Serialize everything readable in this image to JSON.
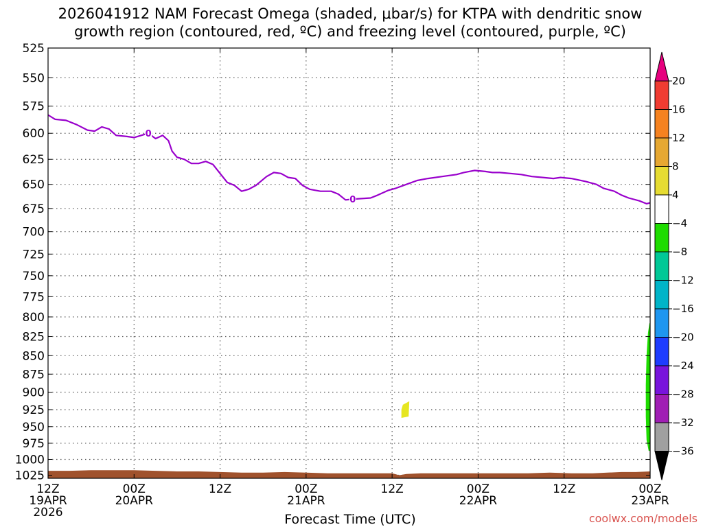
{
  "title": {
    "line1": "2026041912 NAM Forecast Omega (shaded, μbar/s) for KTPA with dendritic snow",
    "line2": "growth region (contoured, red, ºC) and freezing level (contoured, purple, ºC)"
  },
  "credit": "coolwx.com/models",
  "chart_data": {
    "type": "time-height",
    "title": "2026041912 NAM Forecast Omega (shaded, μbar/s) for KTPA with dendritic snow growth region (contoured, red, ºC) and freezing level (contoured, purple, ºC)",
    "xlabel": "Forecast Time (UTC)",
    "ylabel": "",
    "x_unit": "forecast hours from 2026-04-19 12Z",
    "xlim": [
      0,
      84
    ],
    "ylim": [
      1030,
      525
    ],
    "y_ticks": [
      525,
      550,
      575,
      600,
      625,
      650,
      675,
      700,
      725,
      750,
      775,
      800,
      825,
      850,
      875,
      900,
      925,
      950,
      975,
      1000,
      1025
    ],
    "x_ticks": [
      {
        "hour": 0,
        "line1": "12Z",
        "line2": "19APR",
        "line3": "2026"
      },
      {
        "hour": 12,
        "line1": "00Z",
        "line2": "20APR",
        "line3": ""
      },
      {
        "hour": 24,
        "line1": "12Z",
        "line2": "",
        "line3": ""
      },
      {
        "hour": 36,
        "line1": "00Z",
        "line2": "21APR",
        "line3": ""
      },
      {
        "hour": 48,
        "line1": "12Z",
        "line2": "",
        "line3": ""
      },
      {
        "hour": 60,
        "line1": "00Z",
        "line2": "22APR",
        "line3": ""
      },
      {
        "hour": 72,
        "line1": "12Z",
        "line2": "",
        "line3": ""
      },
      {
        "hour": 84,
        "line1": "00Z",
        "line2": "23APR",
        "line3": ""
      }
    ],
    "grid": true,
    "freezing_level": {
      "name": "freezing level",
      "label": "0",
      "color": "#9900cc",
      "label_points": [
        {
          "x": 14,
          "y": 600
        },
        {
          "x": 42.5,
          "y": 665
        }
      ],
      "points": [
        [
          0,
          583
        ],
        [
          1,
          587
        ],
        [
          2.5,
          588
        ],
        [
          4,
          592
        ],
        [
          5.5,
          597
        ],
        [
          6.5,
          598
        ],
        [
          7.5,
          594
        ],
        [
          8.5,
          596
        ],
        [
          9.5,
          602
        ],
        [
          11,
          603
        ],
        [
          12,
          604
        ],
        [
          13,
          602
        ],
        [
          14,
          600
        ],
        [
          15,
          605
        ],
        [
          16,
          602
        ],
        [
          16.8,
          607
        ],
        [
          17.3,
          617
        ],
        [
          18,
          623
        ],
        [
          19,
          625
        ],
        [
          20,
          629
        ],
        [
          21,
          629
        ],
        [
          22,
          627
        ],
        [
          23,
          630
        ],
        [
          24,
          639
        ],
        [
          25,
          648
        ],
        [
          26,
          651
        ],
        [
          27,
          657
        ],
        [
          28,
          655
        ],
        [
          29,
          651
        ],
        [
          30.5,
          642
        ],
        [
          31.5,
          638
        ],
        [
          32.5,
          639
        ],
        [
          33.5,
          643
        ],
        [
          34.5,
          644
        ],
        [
          35.5,
          651
        ],
        [
          36.5,
          655
        ],
        [
          38,
          657
        ],
        [
          39.5,
          657
        ],
        [
          40.5,
          660
        ],
        [
          41.5,
          666
        ],
        [
          43,
          665
        ],
        [
          45,
          664
        ],
        [
          46,
          661
        ],
        [
          47.5,
          656
        ],
        [
          48.5,
          654
        ],
        [
          50,
          650
        ],
        [
          51.5,
          646
        ],
        [
          53,
          644
        ],
        [
          55,
          642
        ],
        [
          57,
          640
        ],
        [
          58,
          638
        ],
        [
          59.5,
          636
        ],
        [
          61,
          637
        ],
        [
          62,
          638
        ],
        [
          63,
          638
        ],
        [
          64.5,
          639
        ],
        [
          66,
          640
        ],
        [
          67.5,
          642
        ],
        [
          69,
          643
        ],
        [
          70.5,
          644
        ],
        [
          71.5,
          643
        ],
        [
          73,
          644
        ],
        [
          75,
          647
        ],
        [
          76.5,
          650
        ],
        [
          77.5,
          654
        ],
        [
          79,
          657
        ],
        [
          80,
          661
        ],
        [
          81,
          664
        ],
        [
          82.5,
          667
        ],
        [
          83.5,
          670
        ],
        [
          84,
          669
        ]
      ]
    },
    "terrain": {
      "name": "surface (below ground)",
      "color": "#a0522d",
      "top_points": [
        [
          0,
          1018
        ],
        [
          3,
          1018
        ],
        [
          6,
          1017
        ],
        [
          9,
          1017
        ],
        [
          12,
          1017
        ],
        [
          15,
          1018
        ],
        [
          18,
          1019
        ],
        [
          21,
          1019
        ],
        [
          24,
          1020
        ],
        [
          27,
          1021
        ],
        [
          30,
          1021
        ],
        [
          33,
          1020
        ],
        [
          36,
          1021
        ],
        [
          39,
          1022
        ],
        [
          42,
          1022
        ],
        [
          45,
          1022
        ],
        [
          48,
          1022
        ],
        [
          49,
          1025
        ],
        [
          50,
          1023
        ],
        [
          52,
          1022
        ],
        [
          55,
          1022
        ],
        [
          58,
          1022
        ],
        [
          61,
          1022
        ],
        [
          64,
          1022
        ],
        [
          67,
          1022
        ],
        [
          70,
          1021
        ],
        [
          73,
          1022
        ],
        [
          76,
          1022
        ],
        [
          78,
          1021
        ],
        [
          80,
          1020
        ],
        [
          82,
          1020
        ],
        [
          84,
          1019
        ]
      ]
    },
    "omega_shaded_regions": [
      {
        "name": "omega 4 to 8",
        "value_range": [
          4,
          8
        ],
        "color": "#e6e621",
        "points": [
          [
            49.5,
            918
          ],
          [
            50.4,
            913
          ],
          [
            50.3,
            935
          ],
          [
            49.3,
            937
          ],
          [
            49.3,
            925
          ]
        ]
      },
      {
        "name": "omega -8 to -4",
        "value_range": [
          -8,
          -4
        ],
        "color": "#1edc00",
        "points": [
          [
            83.9,
            808
          ],
          [
            84,
            808
          ],
          [
            84,
            986
          ],
          [
            83.8,
            987
          ],
          [
            83.5,
            970
          ],
          [
            83.4,
            935
          ],
          [
            83.4,
            890
          ],
          [
            83.5,
            850
          ],
          [
            83.7,
            820
          ]
        ]
      }
    ],
    "colorbar": {
      "labels": [
        "20",
        "16",
        "12",
        "8",
        "4",
        "−4",
        "−8",
        "−12",
        "−16",
        "−20",
        "−24",
        "−28",
        "−32",
        "−36"
      ],
      "top_arrow_color": "#e6007e",
      "bottom_arrow_color": "#000000",
      "colors": [
        "#f03c32",
        "#f58220",
        "#e6a832",
        "#e6dc32",
        "#ffffff",
        "#1edc00",
        "#00c896",
        "#00b4c8",
        "#1e96f0",
        "#1e3cff",
        "#7814dc",
        "#a01eb4",
        "#a0a0a0"
      ]
    }
  }
}
